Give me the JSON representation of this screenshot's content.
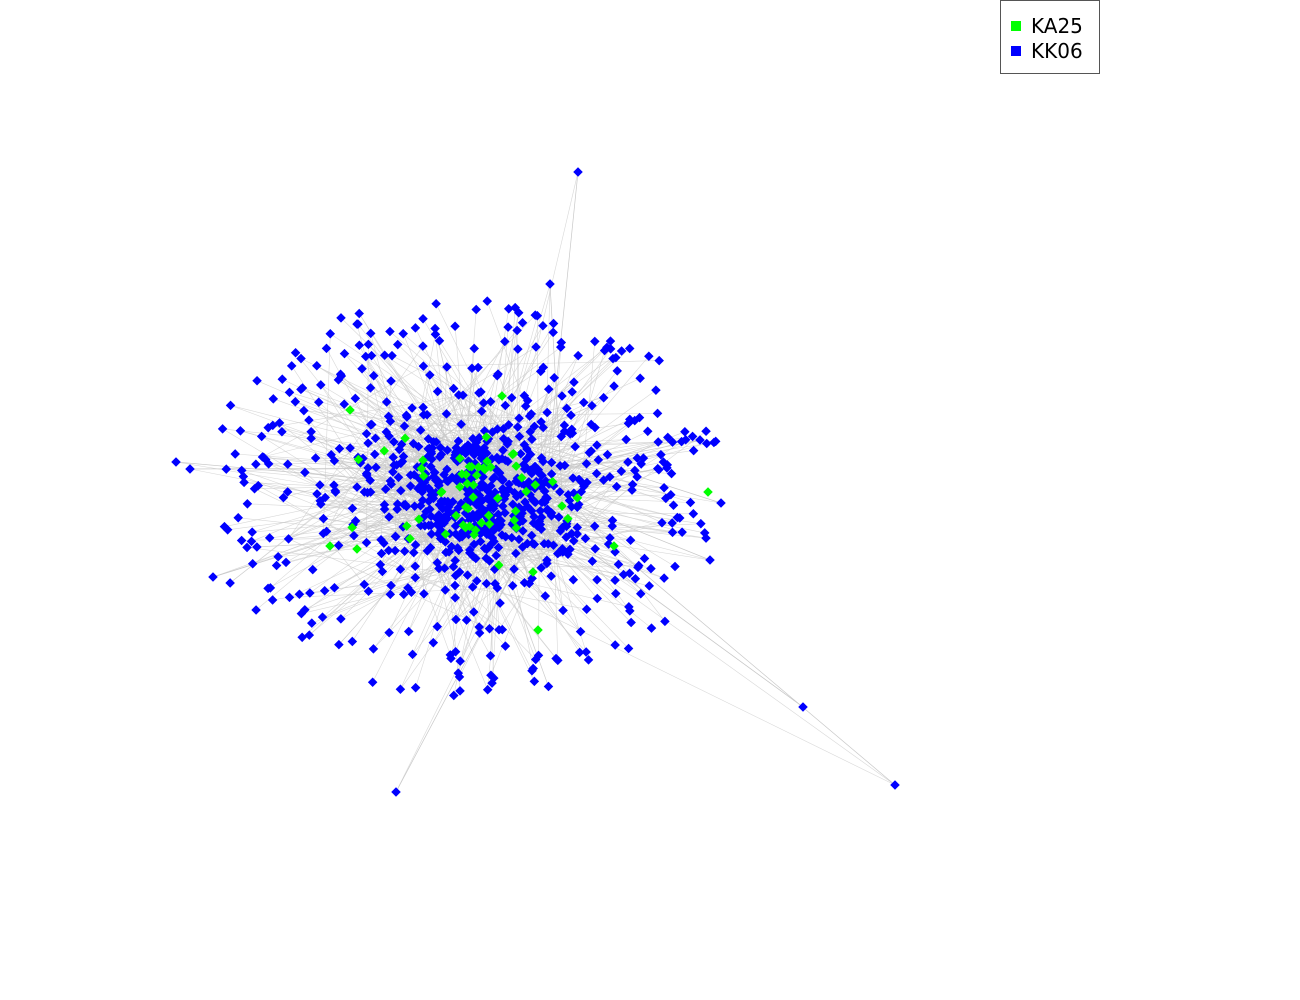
{
  "legend": [
    {
      "label": "KA25",
      "color": "#00ff00"
    },
    {
      "label": "KK06",
      "color": "#0000ff"
    }
  ],
  "edge_color": "#c8c8c8",
  "node_shape": "diamond"
}
